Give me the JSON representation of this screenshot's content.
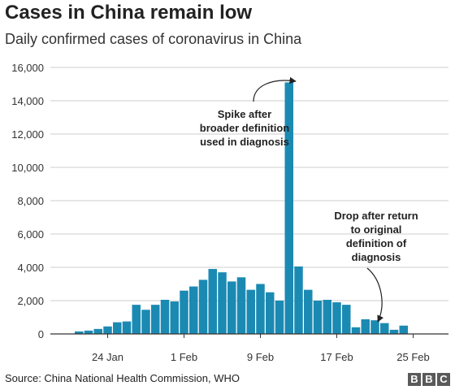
{
  "header": {
    "title": "Cases in China remain low",
    "subtitle": "Daily confirmed cases of coronavirus in China"
  },
  "footer": {
    "source": "Source: China National Health Commission, WHO",
    "logo_letters": [
      "B",
      "B",
      "C"
    ]
  },
  "colors": {
    "bar": "#1b8ab3",
    "grid": "#cccccc",
    "axis": "#333333"
  },
  "chart_data": {
    "type": "bar",
    "categories": [
      "21 Jan",
      "22 Jan",
      "23 Jan",
      "24 Jan",
      "25 Jan",
      "26 Jan",
      "27 Jan",
      "28 Jan",
      "29 Jan",
      "30 Jan",
      "31 Jan",
      "1 Feb",
      "2 Feb",
      "3 Feb",
      "4 Feb",
      "5 Feb",
      "6 Feb",
      "7 Feb",
      "8 Feb",
      "9 Feb",
      "10 Feb",
      "11 Feb",
      "12 Feb",
      "13 Feb",
      "14 Feb",
      "15 Feb",
      "16 Feb",
      "17 Feb",
      "18 Feb",
      "19 Feb",
      "20 Feb",
      "21 Feb",
      "22 Feb",
      "23 Feb",
      "24 Feb",
      "25 Feb"
    ],
    "values": [
      150,
      200,
      300,
      450,
      700,
      750,
      1750,
      1450,
      1750,
      2050,
      1950,
      2600,
      2850,
      3250,
      3900,
      3700,
      3150,
      3400,
      2650,
      3000,
      2500,
      2000,
      15100,
      4050,
      2650,
      2000,
      2050,
      1900,
      1750,
      400,
      880,
      820,
      650,
      250,
      500,
      0
    ],
    "x_tick_labels": [
      {
        "label": "24 Jan",
        "index": 3
      },
      {
        "label": "1 Feb",
        "index": 11
      },
      {
        "label": "9 Feb",
        "index": 19
      },
      {
        "label": "17 Feb",
        "index": 27
      },
      {
        "label": "25 Feb",
        "index": 35
      }
    ],
    "y_ticks": [
      0,
      2000,
      4000,
      6000,
      8000,
      10000,
      12000,
      14000,
      16000
    ],
    "y_tick_labels": [
      "0",
      "2,000",
      "4,000",
      "6,000",
      "8,000",
      "10,000",
      "12,000",
      "14,000",
      "16,000"
    ],
    "ylim": [
      0,
      16000
    ],
    "grid": true,
    "annotations": [
      {
        "lines": [
          "Spike after",
          "broader definition",
          "used in diagnosis"
        ],
        "target_index": 22
      },
      {
        "lines": [
          "Drop after return",
          "to original",
          "definition of",
          "diagnosis"
        ],
        "target_index": 29
      }
    ]
  }
}
